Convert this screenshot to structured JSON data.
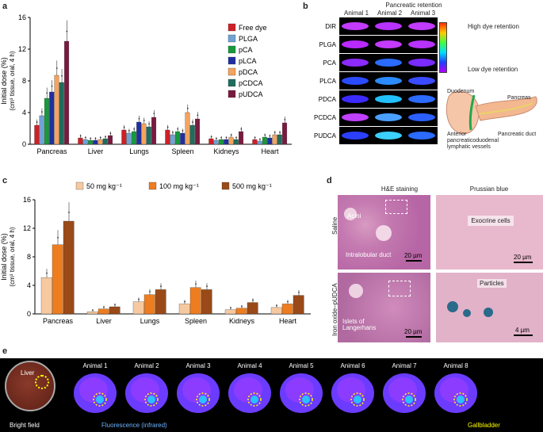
{
  "panels": {
    "a": "a",
    "b": "b",
    "c": "c",
    "d": "d",
    "e": "e"
  },
  "chart_data": [
    {
      "panel": "a",
      "type": "bar",
      "ylabel": "Initial dose (%)",
      "ylabel2": "(cm³ tissue, oral, 4 h)",
      "ylim": [
        0,
        16
      ],
      "yticks": [
        "0",
        "4",
        "8",
        "12",
        "16"
      ],
      "categories": [
        "Pancreas",
        "Liver",
        "Lungs",
        "Spleen",
        "Kidneys",
        "Heart"
      ],
      "series": [
        {
          "name": "Free dye",
          "color": "#d11f26",
          "values": [
            2.4,
            0.8,
            1.8,
            1.8,
            0.7,
            0.6
          ]
        },
        {
          "name": "PLGA",
          "color": "#6fa3d6",
          "values": [
            3.6,
            0.6,
            1.4,
            1.2,
            0.5,
            0.4
          ]
        },
        {
          "name": "pCA",
          "color": "#169a3b",
          "values": [
            5.8,
            0.5,
            1.6,
            1.6,
            0.6,
            0.9
          ]
        },
        {
          "name": "pLCA",
          "color": "#1f2fa0",
          "values": [
            6.6,
            0.5,
            2.8,
            1.4,
            0.6,
            0.8
          ]
        },
        {
          "name": "pDCA",
          "color": "#f5a35e",
          "values": [
            8.7,
            0.6,
            2.6,
            4.0,
            0.9,
            1.2
          ]
        },
        {
          "name": "pCDCA",
          "color": "#1f6d5d",
          "values": [
            7.8,
            0.7,
            2.2,
            2.4,
            0.6,
            1.2
          ]
        },
        {
          "name": "pUDCA",
          "color": "#7a1a3f",
          "values": [
            13.0,
            1.1,
            3.4,
            3.2,
            1.6,
            2.7
          ]
        }
      ]
    },
    {
      "panel": "c",
      "type": "bar",
      "ylabel": "Initial dose (%)",
      "ylabel2": "(cm³ tissue, oral, 4 h)",
      "ylim": [
        0,
        16
      ],
      "yticks": [
        "0",
        "4",
        "8",
        "12",
        "16"
      ],
      "categories": [
        "Pancreas",
        "Liver",
        "Lungs",
        "Spleen",
        "Kidneys",
        "Heart"
      ],
      "series": [
        {
          "name": "50 mg kg⁻¹",
          "color": "#f7c9a0",
          "values": [
            5.1,
            0.3,
            1.7,
            1.4,
            0.6,
            0.9
          ]
        },
        {
          "name": "100 mg kg⁻¹",
          "color": "#ee7d1f",
          "values": [
            9.7,
            0.7,
            2.7,
            3.7,
            0.8,
            1.4
          ]
        },
        {
          "name": "500 mg kg⁻¹",
          "color": "#9a4a18",
          "values": [
            13.0,
            1.0,
            3.4,
            3.4,
            1.6,
            2.6
          ]
        }
      ]
    }
  ],
  "panel_b": {
    "title": "Pancreatic retention",
    "animals": [
      "Animal 1",
      "Animal 2",
      "Animal 3"
    ],
    "rows": [
      "DIR",
      "PLGA",
      "PCA",
      "PLCA",
      "PDCA",
      "PCDCA",
      "PUDCA"
    ],
    "colorbar_high": "High dye retention",
    "colorbar_low": "Low dye retention",
    "anatomy_labels": {
      "duodenum": "Duodenum",
      "pancreas": "Pancreas",
      "vessels": "Anterior pancreaticoduodenal lymphatic vessels",
      "duct": "Pancreatic duct"
    }
  },
  "panel_d": {
    "col1": "H&E staining",
    "col2": "Prussian blue",
    "row1": "Saline",
    "row2": "Iron oxide–pUDCA",
    "acini": "Acini",
    "intralobular": "Intralobular duct",
    "exocrine": "Exocrine cells",
    "islets": "Islets of Langerhans",
    "particles": "Particles",
    "scale20": "20 µm",
    "scale4": "4 µm"
  },
  "panel_e": {
    "liver": "Liver",
    "bright_field": "Bright field",
    "fluorescence": "Fluorescence (infrared)",
    "gallbladder": "Gallbladder",
    "animals": [
      "Animal 1",
      "Animal 2",
      "Animal 3",
      "Animal 4",
      "Animal 5",
      "Animal 6",
      "Animal 7",
      "Animal 8"
    ]
  }
}
